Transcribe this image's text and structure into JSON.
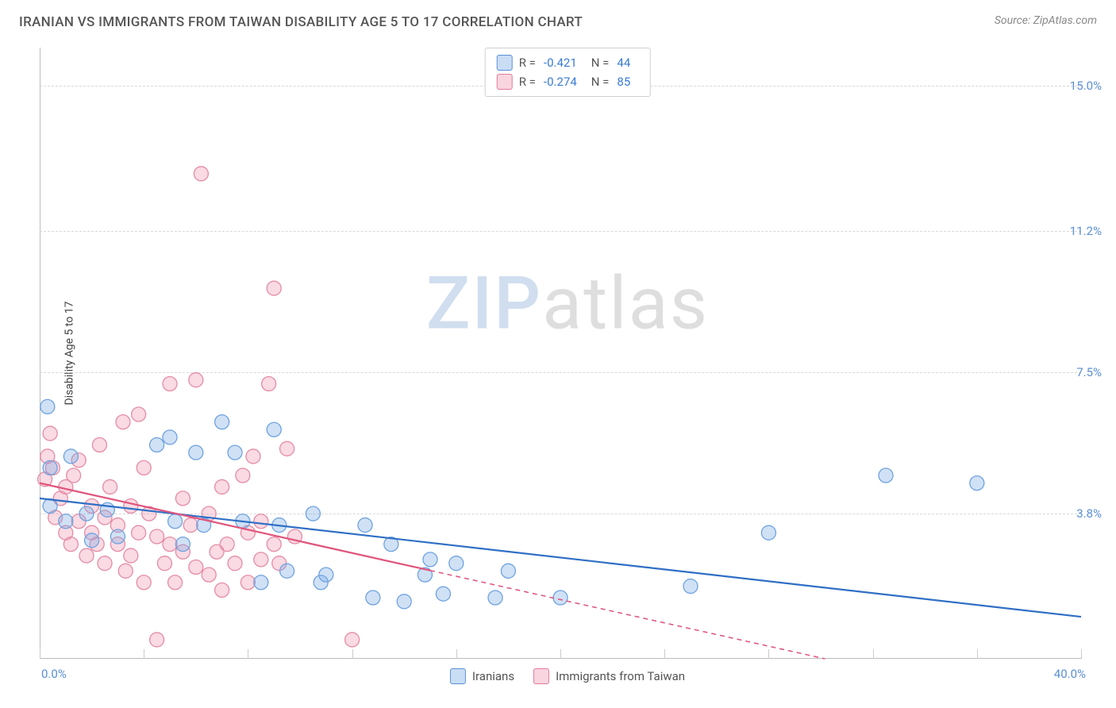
{
  "header": {
    "title": "IRANIAN VS IMMIGRANTS FROM TAIWAN DISABILITY AGE 5 TO 17 CORRELATION CHART",
    "source_prefix": "Source: ",
    "source_link": "ZipAtlas.com"
  },
  "chart": {
    "ylabel": "Disability Age 5 to 17",
    "xlim": [
      0,
      40
    ],
    "ylim": [
      0,
      16
    ],
    "x_ticks_major": [
      0,
      4,
      8,
      12,
      16,
      20,
      24,
      28,
      32,
      36,
      40
    ],
    "y_gridlines": [
      3.8,
      7.5,
      11.2,
      15.0
    ],
    "y_tick_labels": [
      "3.8%",
      "7.5%",
      "11.2%",
      "15.0%"
    ],
    "x_tick_left": "0.0%",
    "x_tick_right": "40.0%",
    "watermark_zip": "ZIP",
    "watermark_atlas": "atlas",
    "background_color": "#ffffff",
    "grid_color": "#d8d8d8",
    "series": [
      {
        "name": "Iranians",
        "color_fill": "rgba(120,170,230,0.35)",
        "color_stroke": "#6fa3e0",
        "marker_radius": 9,
        "R": "-0.421",
        "N": "44",
        "trend": {
          "x1": 0,
          "y1": 4.2,
          "x2": 40,
          "y2": 1.1,
          "color": "#2f6fc5",
          "width": 2.2,
          "dash": null,
          "x_solid_end": 40
        },
        "points": [
          [
            0.3,
            6.6
          ],
          [
            0.4,
            5.0
          ],
          [
            0.4,
            4.0
          ],
          [
            1.2,
            5.3
          ],
          [
            1.0,
            3.6
          ],
          [
            1.8,
            3.8
          ],
          [
            2.0,
            3.1
          ],
          [
            2.6,
            3.9
          ],
          [
            3.0,
            3.2
          ],
          [
            4.5,
            5.6
          ],
          [
            5.0,
            5.8
          ],
          [
            5.2,
            3.6
          ],
          [
            5.5,
            3.0
          ],
          [
            6.0,
            5.4
          ],
          [
            6.3,
            3.5
          ],
          [
            7.0,
            6.2
          ],
          [
            7.5,
            5.4
          ],
          [
            7.8,
            3.6
          ],
          [
            8.5,
            2.0
          ],
          [
            9.0,
            6.0
          ],
          [
            9.2,
            3.5
          ],
          [
            9.5,
            2.3
          ],
          [
            10.5,
            3.8
          ],
          [
            10.8,
            2.0
          ],
          [
            11.0,
            2.2
          ],
          [
            12.5,
            3.5
          ],
          [
            12.8,
            1.6
          ],
          [
            13.5,
            3.0
          ],
          [
            14.0,
            1.5
          ],
          [
            14.8,
            2.2
          ],
          [
            15.0,
            2.6
          ],
          [
            15.5,
            1.7
          ],
          [
            16.0,
            2.5
          ],
          [
            17.5,
            1.6
          ],
          [
            18.0,
            2.3
          ],
          [
            20.0,
            1.6
          ],
          [
            25.0,
            1.9
          ],
          [
            28.0,
            3.3
          ],
          [
            32.5,
            4.8
          ],
          [
            36.0,
            4.6
          ]
        ]
      },
      {
        "name": "Immigrants from Taiwan",
        "color_fill": "rgba(240,150,175,0.35)",
        "color_stroke": "#e48ca6",
        "marker_radius": 9,
        "R": "-0.274",
        "N": "85",
        "trend": {
          "x1": 0,
          "y1": 4.6,
          "x2": 40,
          "y2": -1.5,
          "color": "#e0557c",
          "width": 2.2,
          "dash": "6,5",
          "x_solid_end": 15
        },
        "points": [
          [
            0.2,
            4.7
          ],
          [
            0.3,
            5.3
          ],
          [
            0.4,
            5.9
          ],
          [
            0.5,
            5.0
          ],
          [
            0.6,
            3.7
          ],
          [
            0.8,
            4.2
          ],
          [
            1.0,
            4.5
          ],
          [
            1.0,
            3.3
          ],
          [
            1.2,
            3.0
          ],
          [
            1.3,
            4.8
          ],
          [
            1.5,
            3.6
          ],
          [
            1.5,
            5.2
          ],
          [
            1.8,
            2.7
          ],
          [
            2.0,
            3.3
          ],
          [
            2.0,
            4.0
          ],
          [
            2.2,
            3.0
          ],
          [
            2.3,
            5.6
          ],
          [
            2.5,
            3.7
          ],
          [
            2.5,
            2.5
          ],
          [
            2.7,
            4.5
          ],
          [
            3.0,
            3.0
          ],
          [
            3.0,
            3.5
          ],
          [
            3.2,
            6.2
          ],
          [
            3.3,
            2.3
          ],
          [
            3.5,
            4.0
          ],
          [
            3.5,
            2.7
          ],
          [
            3.8,
            3.3
          ],
          [
            4.0,
            5.0
          ],
          [
            4.0,
            2.0
          ],
          [
            4.2,
            3.8
          ],
          [
            4.5,
            3.2
          ],
          [
            4.5,
            0.5
          ],
          [
            4.8,
            2.5
          ],
          [
            5.0,
            7.2
          ],
          [
            5.0,
            3.0
          ],
          [
            5.2,
            2.0
          ],
          [
            5.5,
            4.2
          ],
          [
            5.5,
            2.8
          ],
          [
            5.8,
            3.5
          ],
          [
            6.0,
            2.4
          ],
          [
            6.0,
            7.3
          ],
          [
            6.2,
            12.7
          ],
          [
            6.5,
            2.2
          ],
          [
            6.5,
            3.8
          ],
          [
            6.8,
            2.8
          ],
          [
            7.0,
            4.5
          ],
          [
            7.0,
            1.8
          ],
          [
            7.2,
            3.0
          ],
          [
            7.5,
            2.5
          ],
          [
            7.8,
            4.8
          ],
          [
            8.0,
            3.3
          ],
          [
            8.0,
            2.0
          ],
          [
            8.2,
            5.3
          ],
          [
            8.5,
            3.6
          ],
          [
            8.5,
            2.6
          ],
          [
            8.8,
            7.2
          ],
          [
            9.0,
            3.0
          ],
          [
            9.0,
            9.7
          ],
          [
            9.2,
            2.5
          ],
          [
            9.5,
            5.5
          ],
          [
            9.8,
            3.2
          ],
          [
            12.0,
            0.5
          ],
          [
            3.8,
            6.4
          ]
        ]
      }
    ]
  },
  "legend_top": {
    "r_label": "R =",
    "n_label": "N ="
  },
  "legend_bottom": {
    "items": [
      "Iranians",
      "Immigrants from Taiwan"
    ]
  }
}
